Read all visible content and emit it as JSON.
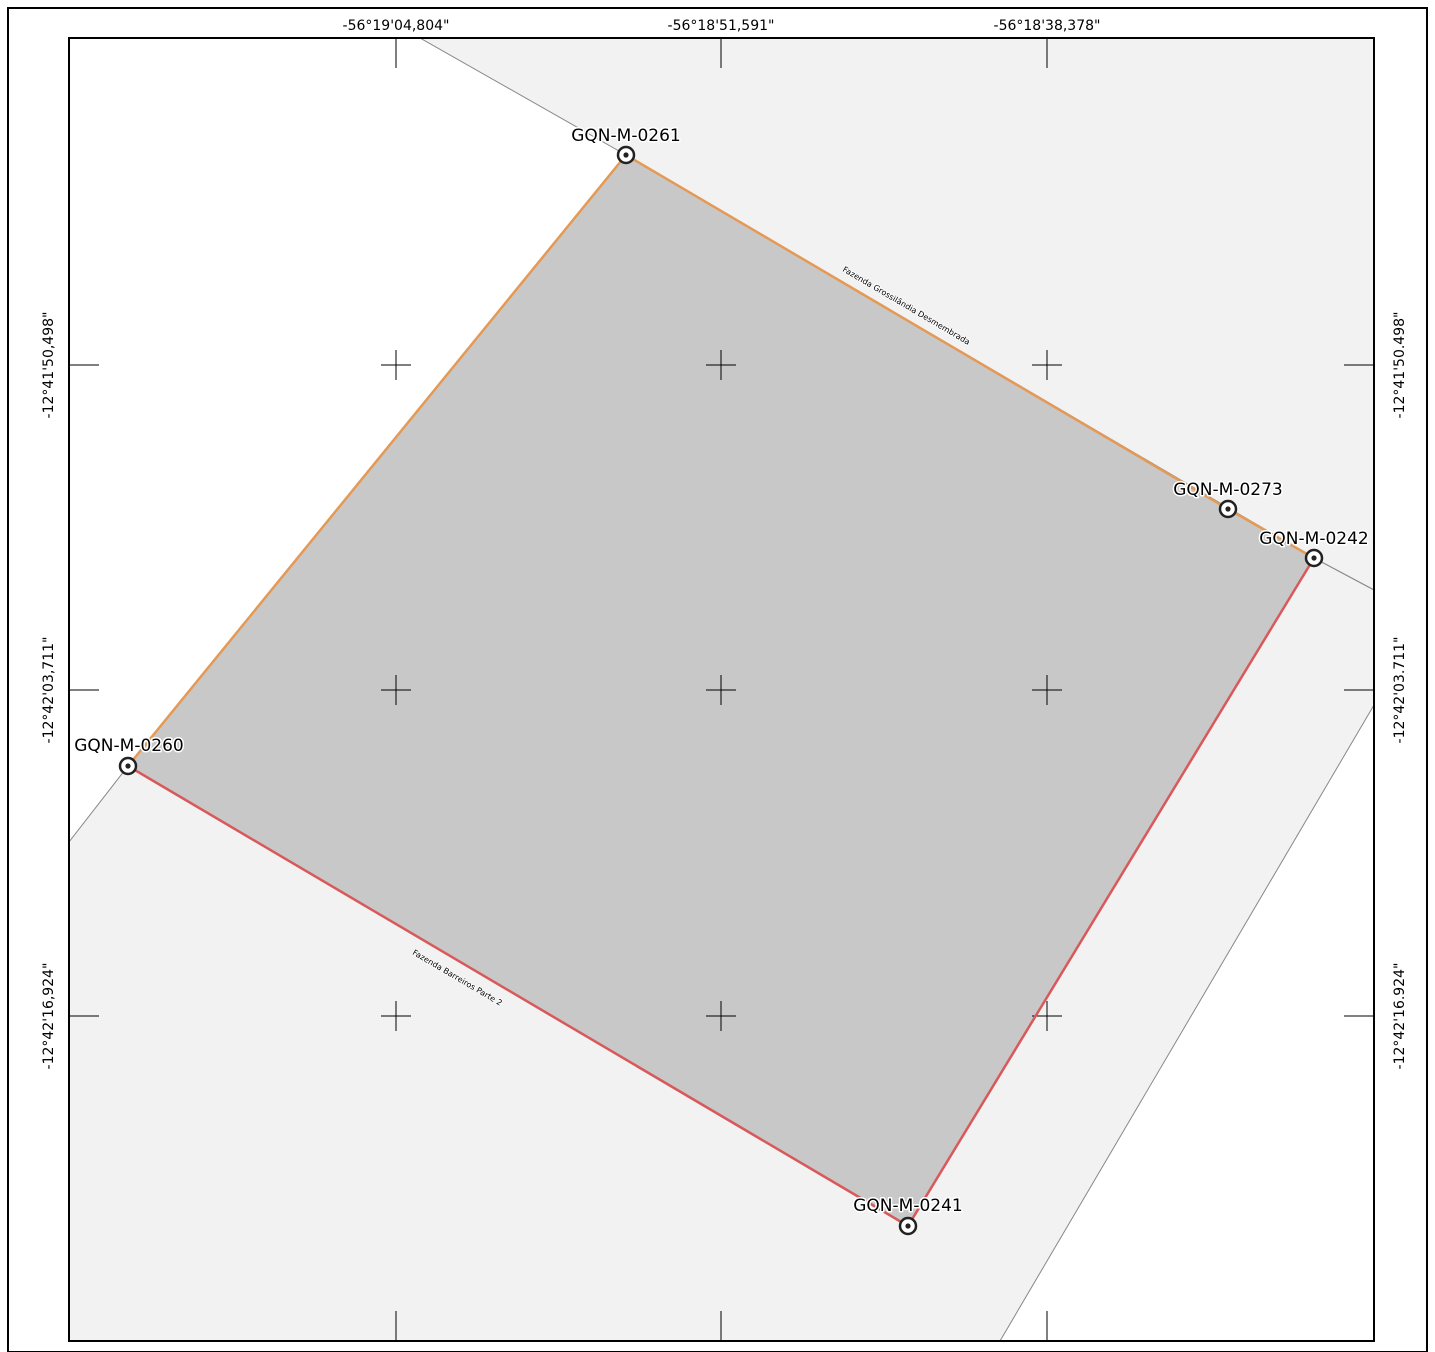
{
  "grid": {
    "longitude_labels": [
      "-56°19'04,804\"",
      "-56°18'51,591\"",
      "-56°18'38,378\""
    ],
    "latitude_labels_left": [
      "-12°41'50,498\"",
      "-12°42'03,711\"",
      "-12°42'16,924\""
    ],
    "latitude_labels_right": [
      "-12°41'50.498\"",
      "-12°42'03.711\"",
      "-12°42'16.924\""
    ]
  },
  "parcel": {
    "fill_color": "#c8c8c8",
    "vertices": [
      {
        "id": "GQN-M-0261"
      },
      {
        "id": "GQN-M-0273"
      },
      {
        "id": "GQN-M-0242"
      },
      {
        "id": "GQN-M-0241"
      },
      {
        "id": "GQN-M-0260"
      }
    ],
    "boundaries": [
      {
        "label": "Fazenda Grossilândia Desmembrada",
        "color": "#e49a55"
      },
      {
        "label": "Fazenda Barreiros Parte 2",
        "color": "#d9585a"
      }
    ]
  },
  "colors": {
    "neighbor_fill": "#f2f2f2",
    "frame": "#000000",
    "neighbor_line": "#888888"
  }
}
